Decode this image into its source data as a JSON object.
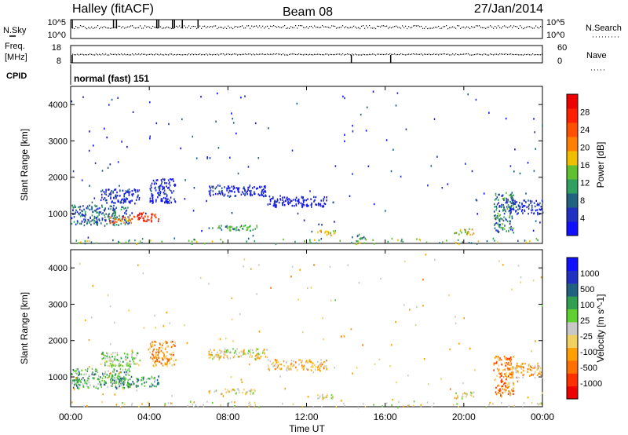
{
  "header": {
    "station": "Halley (fitACF)",
    "beam": "Beam 08",
    "date": "27/Jan/2014"
  },
  "status_panels": {
    "nsky_label": "N.Sky",
    "nsearch_label": "N.Search",
    "nsky_ticks": [
      "10^5",
      "10^0"
    ],
    "nsearch_ticks": [
      "10^5",
      "10^0"
    ],
    "freq_label_line1": "Freq.",
    "freq_label_line2": "[MHz]",
    "freq_ticks": [
      "18",
      "8"
    ],
    "nave_label": "Nave",
    "nave_ticks": [
      "60",
      "0"
    ],
    "cpid_label": "CPID",
    "cpid_value": "normal (fast) 151"
  },
  "chart_data": [
    {
      "type": "heatmap",
      "name": "power",
      "ylabel": "Slant Range [km]",
      "xlabel": "Time UT",
      "xlim_hours": [
        0,
        24
      ],
      "ylim_km": [
        180,
        4500
      ],
      "y_ticks": [
        1000,
        2000,
        3000,
        4000
      ],
      "x_tick_labels": [
        "00:00",
        "04:00",
        "08:00",
        "12:00",
        "16:00",
        "20:00",
        "00:00"
      ],
      "colorbar": {
        "label": "Power [dB]",
        "ticks": [
          "28",
          "24",
          "20",
          "16",
          "12",
          "8",
          "4"
        ],
        "colors": [
          "#1010ff",
          "#2030c0",
          "#206080",
          "#30a060",
          "#60c030",
          "#f0c000",
          "#ff8000",
          "#ff5000",
          "#ff2000",
          "#ee0000"
        ]
      },
      "echo_regions": [
        {
          "t0": 0.0,
          "t1": 3.0,
          "r0": 700,
          "r1": 1250,
          "level": 0.25
        },
        {
          "t0": 1.5,
          "t1": 3.5,
          "r0": 1300,
          "r1": 1700,
          "level": 0.1
        },
        {
          "t0": 2.0,
          "t1": 3.2,
          "r0": 750,
          "r1": 950,
          "level": 0.7
        },
        {
          "t0": 3.2,
          "t1": 4.5,
          "r0": 800,
          "r1": 1050,
          "level": 0.85
        },
        {
          "t0": 4.0,
          "t1": 5.3,
          "r0": 1300,
          "r1": 2000,
          "level": 0.1
        },
        {
          "t0": 7.0,
          "t1": 10.0,
          "r0": 1500,
          "r1": 1800,
          "level": 0.1
        },
        {
          "t0": 10.0,
          "t1": 13.0,
          "r0": 1200,
          "r1": 1500,
          "level": 0.05
        },
        {
          "t0": 7.0,
          "t1": 9.5,
          "r0": 550,
          "r1": 700,
          "level": 0.35
        },
        {
          "t0": 12.5,
          "t1": 13.5,
          "r0": 420,
          "r1": 560,
          "level": 0.55
        },
        {
          "t0": 14.5,
          "t1": 15.0,
          "r0": 250,
          "r1": 450,
          "level": 0.3
        },
        {
          "t0": 19.5,
          "t1": 20.5,
          "r0": 430,
          "r1": 600,
          "level": 0.5
        },
        {
          "t0": 21.5,
          "t1": 22.5,
          "r0": 500,
          "r1": 1600,
          "level": 0.3
        },
        {
          "t0": 22.3,
          "t1": 24.0,
          "r0": 1000,
          "r1": 1400,
          "level": 0.12
        },
        {
          "t0": 0.0,
          "t1": 24.0,
          "r0": 180,
          "r1": 350,
          "level": 0.4
        },
        {
          "t0": 0.0,
          "t1": 24.0,
          "r0": 350,
          "r1": 4400,
          "level": 0.15
        }
      ]
    },
    {
      "type": "heatmap",
      "name": "velocity",
      "ylabel": "Slant Range [km]",
      "xlabel": "Time UT",
      "xlim_hours": [
        0,
        24
      ],
      "ylim_km": [
        180,
        4500
      ],
      "y_ticks": [
        1000,
        2000,
        3000,
        4000
      ],
      "x_tick_labels": [
        "00:00",
        "04:00",
        "08:00",
        "12:00",
        "16:00",
        "20:00",
        "00:00"
      ],
      "colorbar": {
        "label": "Velocity [m s^-1]",
        "ticks": [
          "1000",
          "500",
          "100",
          "25",
          "-25",
          "-100",
          "-500",
          "-1000"
        ],
        "colors": [
          "#ee0000",
          "#ff3000",
          "#ff7000",
          "#ffa000",
          "#f0d060",
          "#c8c8c8",
          "#60d030",
          "#30a050",
          "#206080",
          "#2030c0",
          "#1010ff"
        ]
      },
      "echo_regions": [
        {
          "t0": 0.0,
          "t1": 3.0,
          "r0": 700,
          "r1": 1250,
          "level": 0.62
        },
        {
          "t0": 1.5,
          "t1": 3.5,
          "r0": 1300,
          "r1": 1700,
          "level": 0.55
        },
        {
          "t0": 2.0,
          "t1": 4.5,
          "r0": 750,
          "r1": 1050,
          "level": 0.66
        },
        {
          "t0": 4.0,
          "t1": 5.3,
          "r0": 1300,
          "r1": 2000,
          "level": 0.3
        },
        {
          "t0": 7.0,
          "t1": 10.0,
          "r0": 1500,
          "r1": 1800,
          "level": 0.45
        },
        {
          "t0": 10.0,
          "t1": 13.0,
          "r0": 1200,
          "r1": 1500,
          "level": 0.4
        },
        {
          "t0": 7.0,
          "t1": 9.5,
          "r0": 550,
          "r1": 700,
          "level": 0.45
        },
        {
          "t0": 12.5,
          "t1": 13.5,
          "r0": 420,
          "r1": 560,
          "level": 0.45
        },
        {
          "t0": 19.5,
          "t1": 20.5,
          "r0": 430,
          "r1": 600,
          "level": 0.45
        },
        {
          "t0": 21.5,
          "t1": 22.5,
          "r0": 500,
          "r1": 1600,
          "level": 0.25
        },
        {
          "t0": 22.3,
          "t1": 24.0,
          "r0": 1000,
          "r1": 1400,
          "level": 0.35
        },
        {
          "t0": 0.0,
          "t1": 24.0,
          "r0": 180,
          "r1": 350,
          "level": 0.45
        },
        {
          "t0": 0.0,
          "t1": 24.0,
          "r0": 350,
          "r1": 4400,
          "level": 0.4
        }
      ]
    }
  ]
}
